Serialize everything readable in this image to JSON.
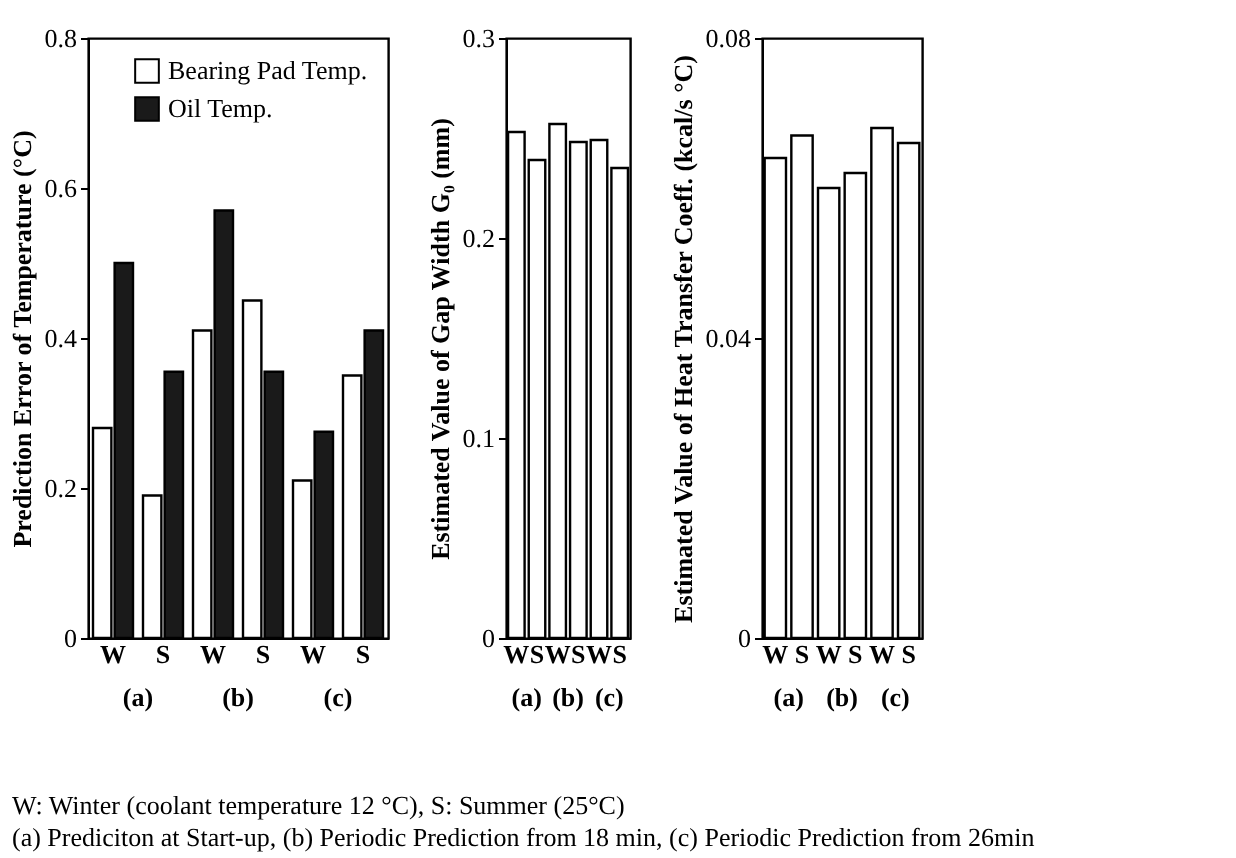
{
  "chart_data": [
    {
      "type": "bar",
      "ylabel": "Prediction Error of Temperature (°C)",
      "categories": [
        "W",
        "S",
        "W",
        "S",
        "W",
        "S"
      ],
      "series": [
        {
          "name": "Bearing Pad Temp.",
          "color": "#ffffff",
          "values": [
            0.28,
            0.19,
            0.41,
            0.45,
            0.21,
            0.35
          ]
        },
        {
          "name": "Oil Temp.",
          "color": "#1a1a1a",
          "values": [
            0.5,
            0.355,
            0.57,
            0.355,
            0.275,
            0.41
          ]
        }
      ],
      "ylim": [
        0,
        0.8
      ],
      "yticks": [
        0,
        0.2,
        0.4,
        0.6,
        0.8
      ],
      "legend": "top right",
      "grid": false,
      "annotations": [
        "(a)",
        "(b)",
        "(c)",
        "W: Winter (coolant temperature 12 °C), S: Summer (25°C)",
        "(a) Prediciton at Start-up,  (b) Periodic Prediction from 18 min, (c) Periodic Prediction from 26min"
      ]
    },
    {
      "type": "bar",
      "ylabel": "Estimated Value of Gap Width G₀ (mm)",
      "categories": [
        "W",
        "S",
        "W",
        "S",
        "W",
        "S"
      ],
      "series": [
        {
          "color": "#ffffff",
          "values": [
            0.253,
            0.239,
            0.257,
            0.248,
            0.249,
            0.235
          ]
        }
      ],
      "ylim": [
        0,
        0.3
      ],
      "yticks": [
        0,
        0.1,
        0.2,
        0.3
      ],
      "grid": false,
      "annotations": [
        "(a)",
        "(b)",
        "(c)"
      ]
    },
    {
      "type": "bar",
      "ylabel": "Estimated Value of Heat Transfer Coeff. (kcal/s °C)",
      "categories": [
        "W",
        "S",
        "W",
        "S",
        "W",
        "S"
      ],
      "series": [
        {
          "color": "#ffffff",
          "values": [
            0.064,
            0.067,
            0.06,
            0.062,
            0.068,
            0.066
          ]
        }
      ],
      "ylim": [
        0,
        0.08
      ],
      "yticks": [
        0,
        0.04,
        0.08
      ],
      "grid": false,
      "annotations": [
        "(a)",
        "(b)",
        "(c)"
      ]
    }
  ]
}
